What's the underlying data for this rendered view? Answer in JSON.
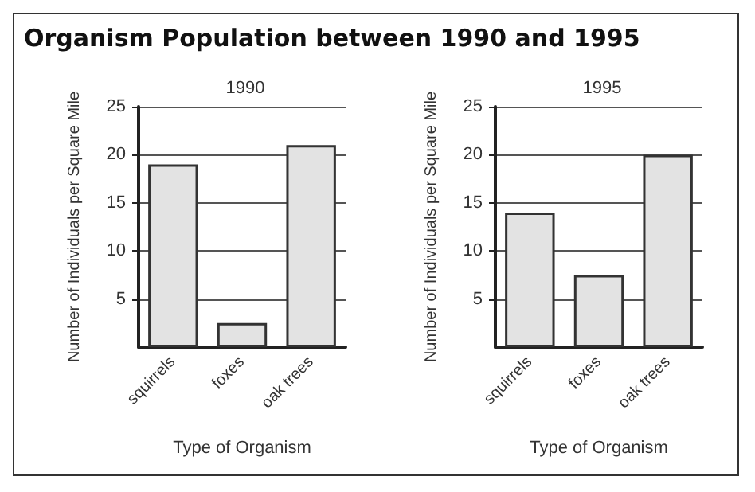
{
  "chart_data": [
    {
      "type": "bar",
      "title": "Organism Population between 1990 and 1995",
      "subtitle": "1990",
      "xlabel": "Type of Organism",
      "ylabel": "Number of Individuals per Square Mile",
      "categories": [
        "squirrels",
        "foxes",
        "oak trees"
      ],
      "values": [
        19,
        2.5,
        21
      ],
      "color": "#e3e3e3",
      "ylim": [
        0,
        25
      ],
      "yticks": [
        5,
        10,
        15,
        20,
        25
      ],
      "grid": "y"
    },
    {
      "type": "bar",
      "title": "1995",
      "xlabel": "Type of Organism",
      "ylabel": "Number of Individuals per Square Mile",
      "categories": [
        "squirrels",
        "foxes",
        "oak trees"
      ],
      "values": [
        14,
        7.5,
        20
      ],
      "color": "#e3e3e3",
      "ylim": [
        0,
        25
      ],
      "yticks": [
        5,
        10,
        15,
        20,
        25
      ],
      "grid": "y"
    }
  ]
}
